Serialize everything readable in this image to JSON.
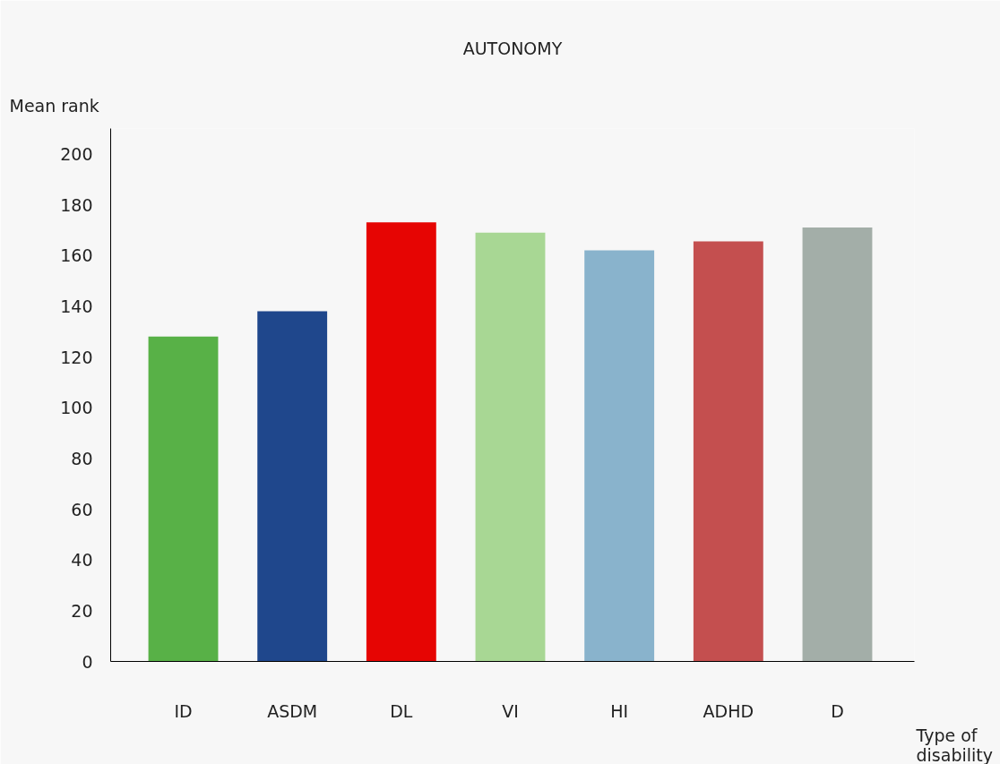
{
  "chart_data": {
    "type": "bar",
    "title": "AUTONOMY",
    "xlabel": "Type of disability",
    "ylabel": "Mean rank",
    "categories": [
      "ID",
      "ASDM",
      "DL",
      "VI",
      "HI",
      "ADHD",
      "D"
    ],
    "values": [
      128,
      138,
      173,
      169,
      162,
      165.5,
      171
    ],
    "colors": [
      "#58b147",
      "#1f478c",
      "#e60503",
      "#a8d794",
      "#89b3cc",
      "#c44f4f",
      "#a3aea8"
    ],
    "ylim": [
      0,
      210
    ],
    "yticks": [
      0,
      20,
      40,
      60,
      80,
      100,
      120,
      140,
      160,
      180,
      200
    ],
    "grid": false
  }
}
